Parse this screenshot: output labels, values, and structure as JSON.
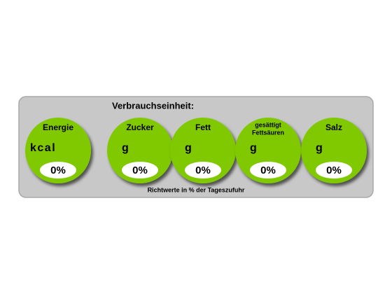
{
  "title": "Verbrauchseinheit:",
  "items": [
    {
      "name": [
        "Energie"
      ],
      "unit": "kcal",
      "percent": "0%"
    },
    {
      "name": [
        "Zucker"
      ],
      "unit": "g",
      "percent": "0%"
    },
    {
      "name": [
        "Fett"
      ],
      "unit": "g",
      "percent": "0%"
    },
    {
      "name": [
        "gesättigt",
        "Fettsäuren"
      ],
      "unit": "g",
      "percent": "0%"
    },
    {
      "name": [
        "Salz"
      ],
      "unit": "g",
      "percent": "0%"
    }
  ],
  "footer": "Richtwerte in % der Tageszufuhr"
}
